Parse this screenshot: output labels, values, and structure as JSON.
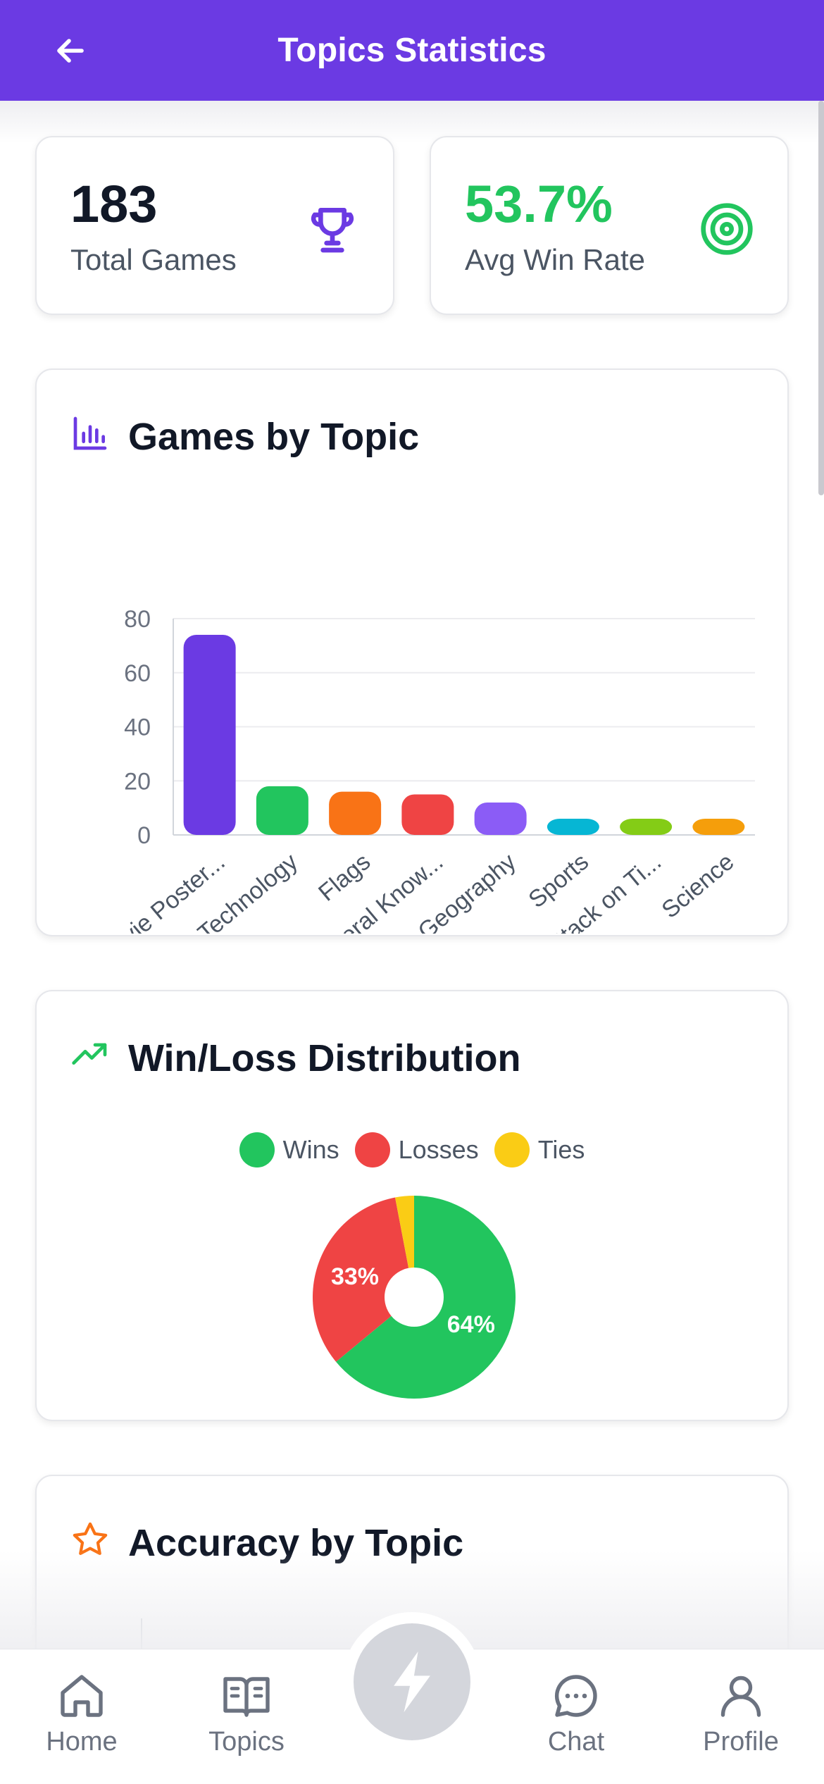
{
  "header": {
    "title": "Topics Statistics"
  },
  "stats": {
    "total_games": {
      "value": "183",
      "label": "Total Games"
    },
    "win_rate": {
      "value": "53.7%",
      "label": "Avg Win Rate"
    }
  },
  "colors": {
    "primary": "#6b3ae3",
    "green": "#22c55e",
    "red": "#ef4444",
    "yellow": "#facc15"
  },
  "games_card": {
    "title": "Games by Topic"
  },
  "winloss_card": {
    "title": "Win/Loss Distribution"
  },
  "accuracy_card": {
    "title": "Accuracy by Topic"
  },
  "chart_data": [
    {
      "type": "bar",
      "title": "Games by Topic",
      "categories": [
        "Movie Poster...",
        "Technology",
        "Flags",
        "General Know...",
        "Geography",
        "Sports",
        "Attack on Ti...",
        "Science"
      ],
      "values": [
        74,
        18,
        16,
        15,
        12,
        6,
        6,
        6
      ],
      "colors": [
        "#6b3ae3",
        "#22c55e",
        "#f97316",
        "#ef4444",
        "#8b5cf6",
        "#06b6d4",
        "#84cc16",
        "#f59e0b"
      ],
      "ylim": [
        0,
        80
      ],
      "yticks": [
        "80",
        "60",
        "40",
        "20",
        "0"
      ],
      "xlabel": "",
      "ylabel": ""
    },
    {
      "type": "pie",
      "title": "Win/Loss Distribution",
      "categories": [
        "Wins",
        "Losses",
        "Ties"
      ],
      "values": [
        64,
        33,
        3
      ],
      "colors": [
        "#22c55e",
        "#ef4444",
        "#facc15"
      ],
      "labels": [
        "64%",
        "33%",
        ""
      ]
    }
  ],
  "tabbar": {
    "home": "Home",
    "topics": "Topics",
    "chat": "Chat",
    "profile": "Profile"
  }
}
